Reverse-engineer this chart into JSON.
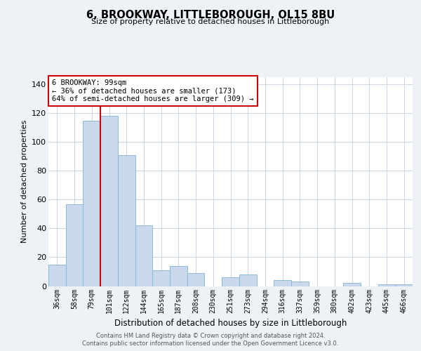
{
  "title": "6, BROOKWAY, LITTLEBOROUGH, OL15 8BU",
  "subtitle": "Size of property relative to detached houses in Littleborough",
  "xlabel": "Distribution of detached houses by size in Littleborough",
  "ylabel": "Number of detached properties",
  "bar_labels": [
    "36sqm",
    "58sqm",
    "79sqm",
    "101sqm",
    "122sqm",
    "144sqm",
    "165sqm",
    "187sqm",
    "208sqm",
    "230sqm",
    "251sqm",
    "273sqm",
    "294sqm",
    "316sqm",
    "337sqm",
    "359sqm",
    "380sqm",
    "402sqm",
    "423sqm",
    "445sqm",
    "466sqm"
  ],
  "bar_values": [
    15,
    57,
    115,
    118,
    91,
    42,
    11,
    14,
    9,
    0,
    6,
    8,
    0,
    4,
    3,
    0,
    0,
    2,
    0,
    1,
    1
  ],
  "bar_color": "#c8d9ed",
  "bar_edge_color": "#8fb8d8",
  "annotation_text_line1": "6 BROOKWAY: 99sqm",
  "annotation_text_line2": "← 36% of detached houses are smaller (173)",
  "annotation_text_line3": "64% of semi-detached houses are larger (309) →",
  "annotation_box_edge_color": "#cc0000",
  "vline_color": "#cc0000",
  "vline_x": 2.5,
  "ylim": [
    0,
    145
  ],
  "yticks": [
    0,
    20,
    40,
    60,
    80,
    100,
    120,
    140
  ],
  "bg_color": "#eef2f7",
  "plot_bg_color": "#ffffff",
  "grid_color": "#c5d0de",
  "footer_line1": "Contains HM Land Registry data © Crown copyright and database right 2024.",
  "footer_line2": "Contains public sector information licensed under the Open Government Licence v3.0."
}
